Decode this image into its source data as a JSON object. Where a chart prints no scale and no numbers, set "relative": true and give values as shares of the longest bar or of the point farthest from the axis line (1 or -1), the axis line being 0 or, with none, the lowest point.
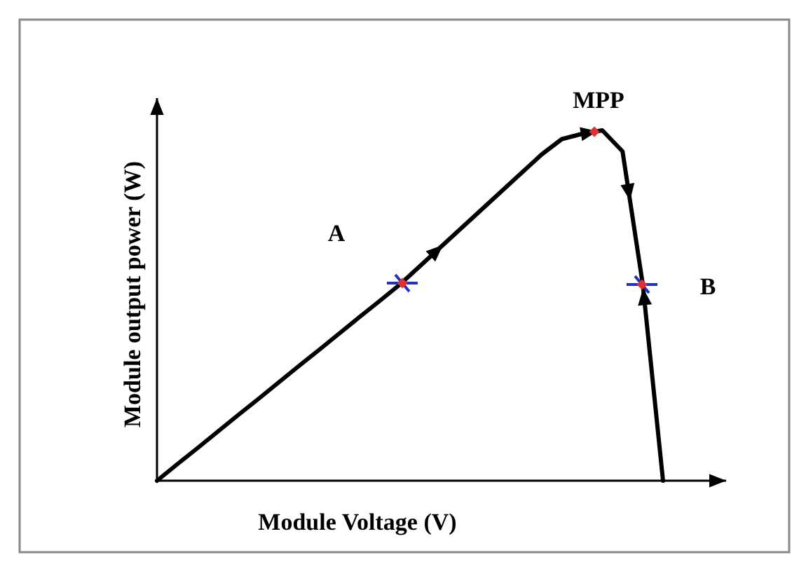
{
  "chart_data": {
    "type": "line",
    "relative": true,
    "xlabel": "Module Voltage (V)",
    "ylabel": "Module output power (W)",
    "categories": [
      null,
      null,
      null,
      null,
      null,
      null,
      null,
      null,
      null,
      null,
      null,
      null,
      null,
      null,
      null,
      null,
      null,
      null,
      null,
      null,
      null,
      null,
      null,
      null,
      null,
      null
    ],
    "series": [
      {
        "color": "#000000",
        "values": [
          0,
          0.047,
          0.093,
          0.14,
          0.187,
          0.233,
          0.28,
          0.327,
          0.373,
          0.42,
          0.467,
          0.513,
          0.56,
          0.613,
          0.666,
          0.719,
          0.772,
          0.825,
          0.878,
          0.931,
          0.975,
          0.99,
          1,
          0.94,
          0.56,
          0
        ]
      }
    ],
    "annotations": [
      "A",
      "MPP",
      "B"
    ],
    "marker": "none",
    "line_style": "solid"
  }
}
